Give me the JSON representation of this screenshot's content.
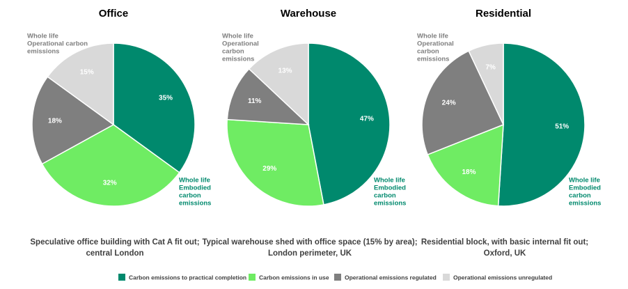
{
  "legend": {
    "names": [
      "Carbon emissions to practical completion",
      "Carbon emissions in use",
      "Operational emissions regulated",
      "Operational emissions unregulated"
    ],
    "colors": [
      "#00896d",
      "#6fec63",
      "#7f7f7f",
      "#d9d9d9"
    ]
  },
  "chart_data": [
    {
      "type": "pie",
      "title": "Office",
      "values": [
        35,
        32,
        18,
        15
      ],
      "value_labels": [
        "35%",
        "32%",
        "18%",
        "15%"
      ],
      "annotations": {
        "operational": [
          "Whole life",
          "Operational carbon",
          "emissions"
        ],
        "embodied": [
          "Whole life",
          "Embodied",
          "carbon",
          "emissions"
        ]
      },
      "caption": [
        "Speculative office building with Cat A fit out;",
        "central London"
      ]
    },
    {
      "type": "pie",
      "title": "Warehouse",
      "values": [
        47,
        29,
        11,
        13
      ],
      "value_labels": [
        "47%",
        "29%",
        "11%",
        "13%"
      ],
      "annotations": {
        "operational": [
          "Whole life",
          "Operational",
          "carbon",
          "emissions"
        ],
        "embodied": [
          "Whole life",
          "Embodied",
          "carbon",
          "emissions"
        ]
      },
      "caption": [
        "Typical warehouse shed with office space (15% by area);",
        "London perimeter, UK"
      ]
    },
    {
      "type": "pie",
      "title": "Residential",
      "values": [
        51,
        18,
        24,
        7
      ],
      "value_labels": [
        "51%",
        "18%",
        "24%",
        "7%"
      ],
      "annotations": {
        "operational": [
          "Whole life",
          "Operational",
          "carbon",
          "emissions"
        ],
        "embodied": [
          "Whole life",
          "Embodied",
          "carbon",
          "emissions"
        ]
      },
      "caption": [
        "Residential block, with basic internal fit out;",
        "Oxford, UK"
      ]
    }
  ]
}
